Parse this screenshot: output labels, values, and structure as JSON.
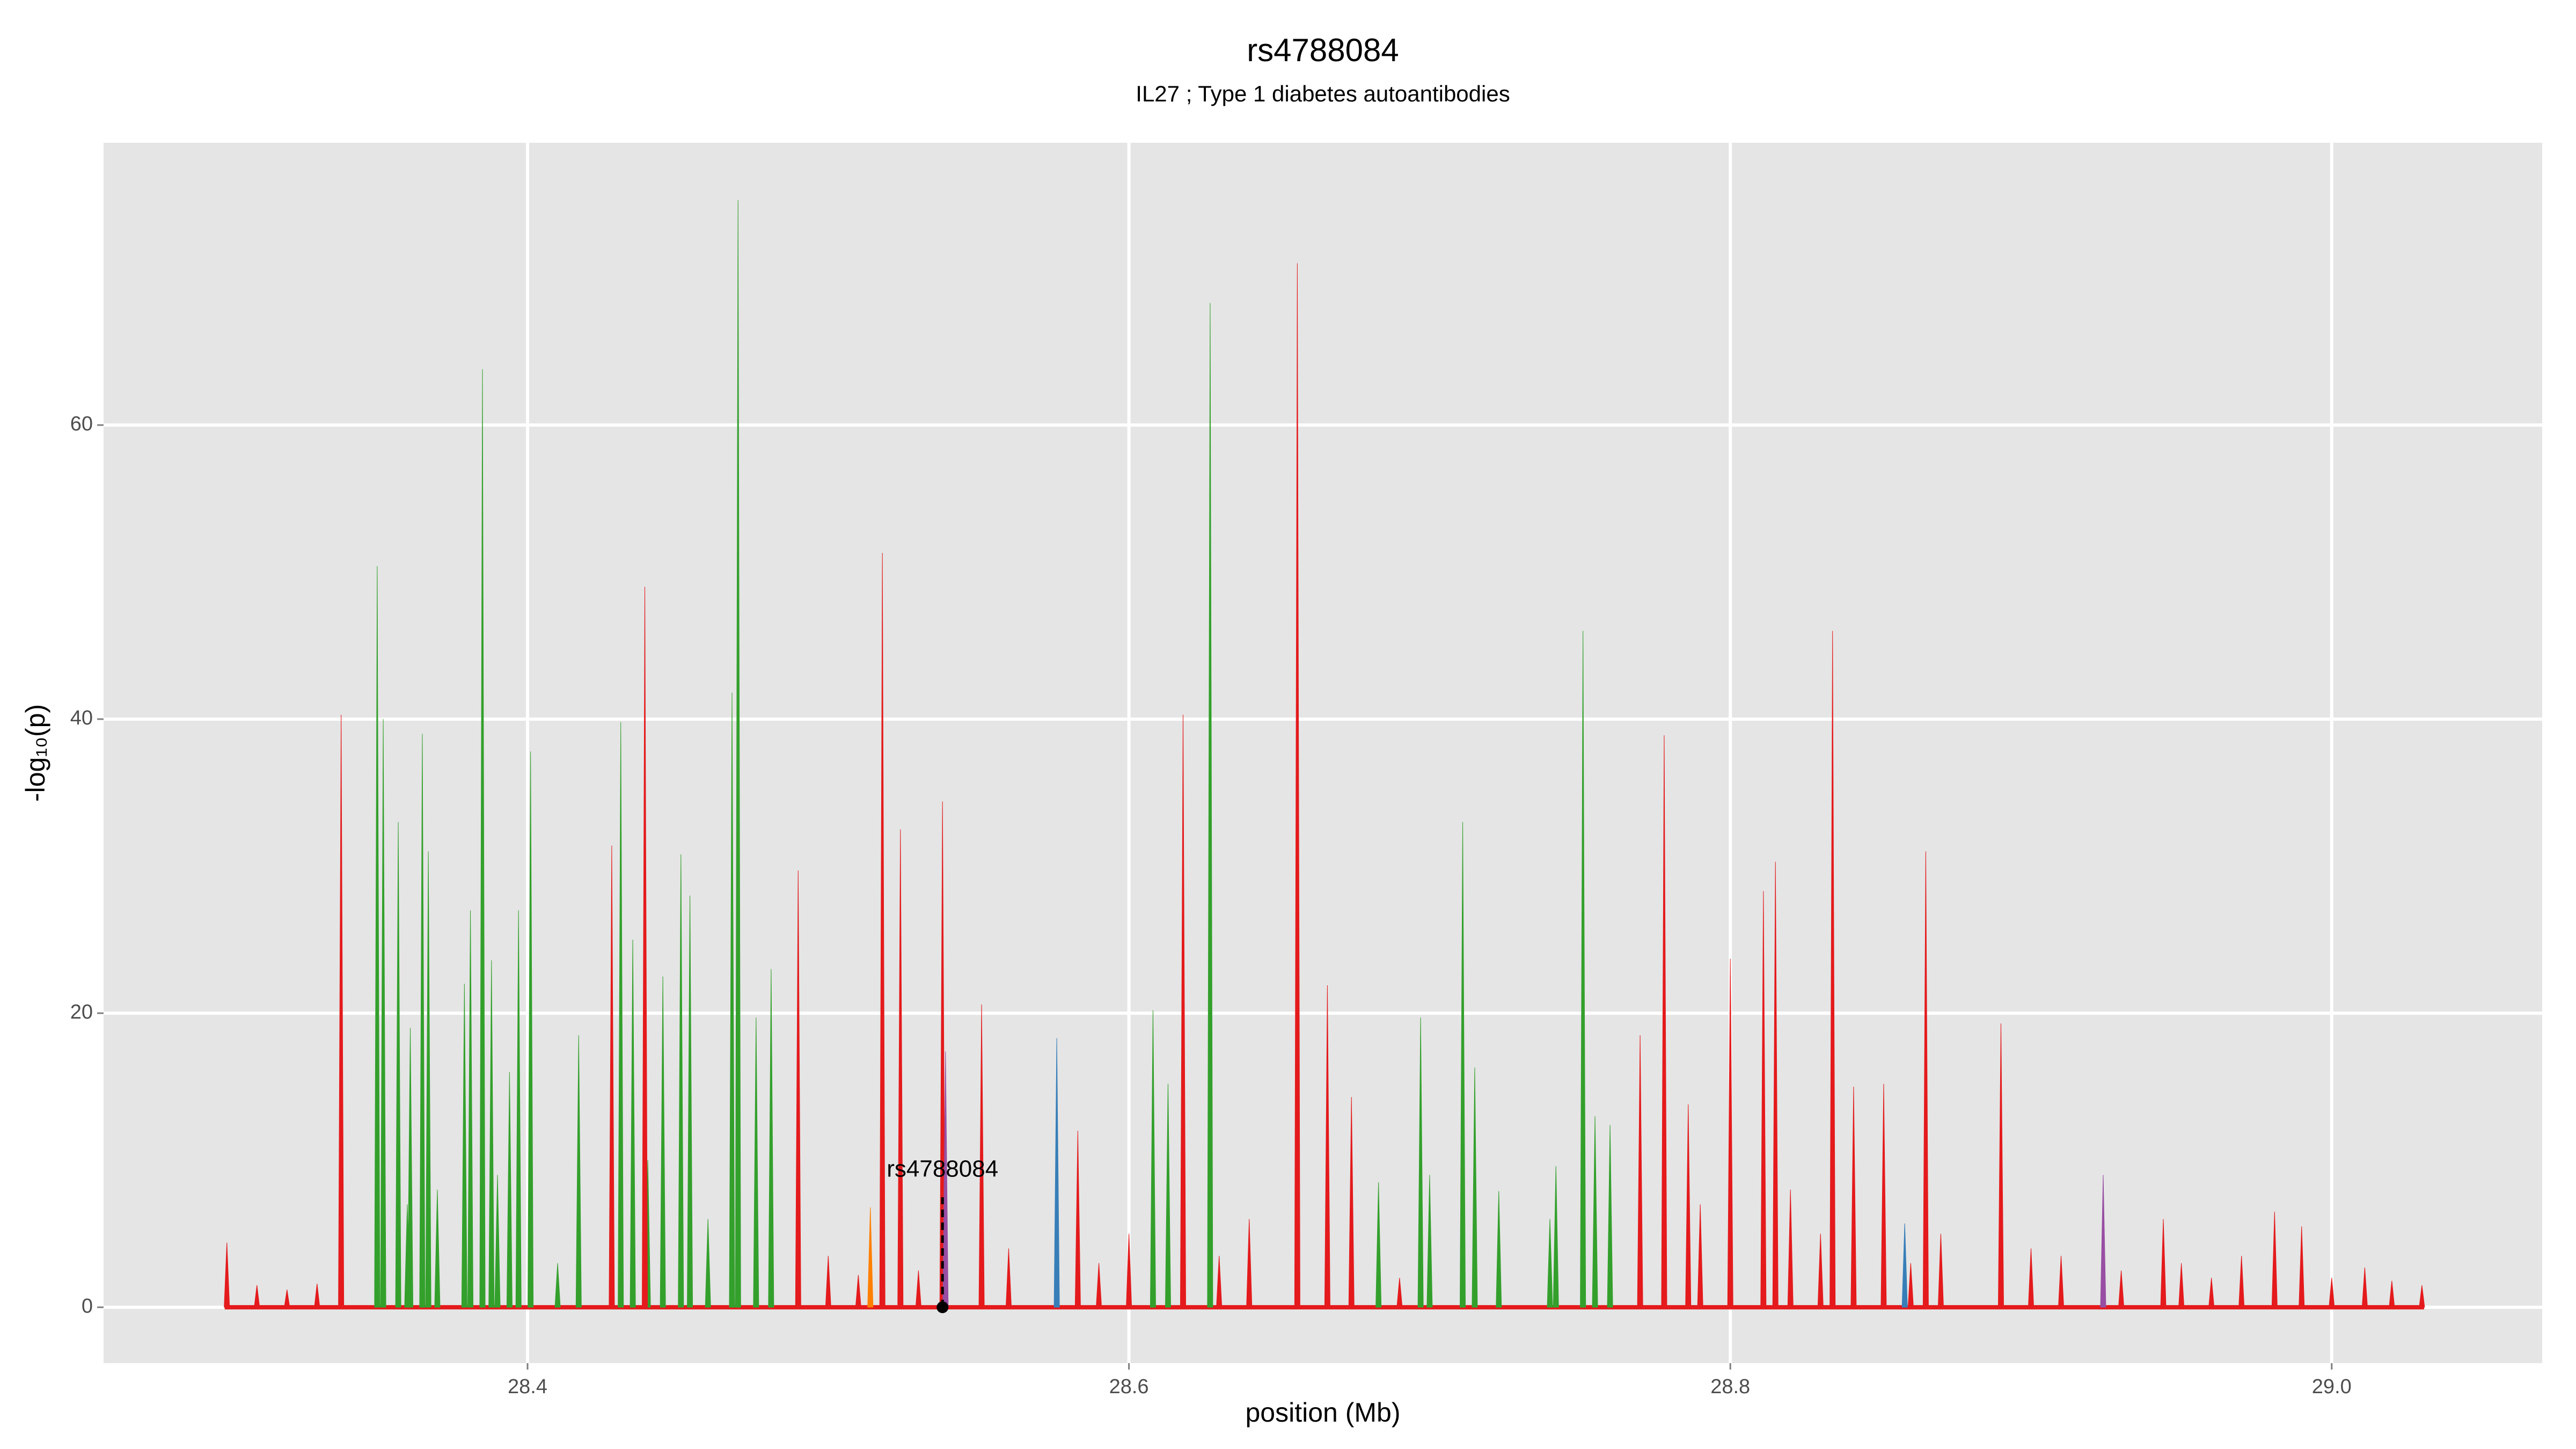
{
  "chart_data": {
    "type": "area",
    "title": "rs4788084",
    "subtitle": "IL27 ; Type 1 diabetes autoantibodies",
    "xlabel": "position (Mb)",
    "ylabel": "-log₁₀(p)",
    "xlim": [
      28.259,
      29.07
    ],
    "ylim": [
      -3.8,
      79.2
    ],
    "xticks": [
      28.4,
      28.6,
      28.8,
      {
        "value": 29,
        "label": "29.0"
      }
    ],
    "yticks": [
      0,
      20,
      40,
      60
    ],
    "grid": true,
    "series": [
      {
        "name": "green",
        "color": "#33a02c",
        "x": [
          28.35,
          28.352,
          28.357,
          28.361,
          28.365,
          28.367,
          28.379,
          28.381,
          28.385,
          28.388,
          28.394,
          28.397,
          28.401,
          28.417,
          28.431,
          28.435,
          28.445,
          28.451,
          28.454,
          28.468,
          28.47,
          28.476,
          28.481,
          28.608,
          28.613,
          28.627,
          28.683,
          28.697,
          28.711,
          28.715,
          28.723,
          28.742,
          28.751,
          28.755,
          28.76,
          28.36,
          28.37,
          28.39,
          28.41,
          28.44,
          28.46,
          28.47,
          28.7,
          28.74,
          28.76
        ],
        "values": [
          50.4,
          40,
          33,
          19,
          39,
          31,
          22,
          27,
          63.8,
          23.6,
          16,
          27,
          37.8,
          18.5,
          39.8,
          25,
          22.5,
          30.8,
          28,
          41.8,
          75.3,
          19.7,
          23,
          20.2,
          15.2,
          68.3,
          8.5,
          19.7,
          33,
          16.3,
          7.9,
          9.6,
          46,
          13,
          12.4,
          7,
          8,
          9,
          3,
          10,
          6,
          12,
          9,
          6,
          5
        ]
      },
      {
        "name": "red",
        "color": "#e41a1c",
        "x": [
          28.3,
          28.338,
          28.428,
          28.439,
          28.49,
          28.518,
          28.524,
          28.538,
          28.551,
          28.583,
          28.618,
          28.656,
          28.666,
          28.674,
          28.77,
          28.778,
          28.786,
          28.8,
          28.811,
          28.815,
          28.834,
          28.841,
          28.851,
          28.865,
          28.89,
          28.944,
          28.981,
          29.011,
          28.31,
          28.32,
          28.33,
          28.5,
          28.51,
          28.53,
          28.56,
          28.59,
          28.6,
          28.63,
          28.64,
          28.69,
          28.79,
          28.82,
          28.83,
          28.86,
          28.87,
          28.9,
          28.91,
          28.93,
          28.95,
          28.96,
          28.97,
          28.99,
          29.0,
          29.02,
          29.03
        ],
        "values": [
          4.4,
          40.3,
          31.4,
          49,
          29.7,
          51.3,
          32.5,
          34.4,
          20.6,
          12,
          40.3,
          71,
          21.9,
          14.3,
          18.5,
          38.9,
          13.8,
          23.7,
          28.3,
          30.3,
          46,
          15,
          15.2,
          31,
          19.3,
          6,
          6.5,
          2.7,
          1.5,
          1.2,
          1.6,
          3.5,
          2.2,
          2.5,
          4,
          3,
          5,
          3.5,
          6,
          2,
          7,
          8,
          5,
          3,
          5,
          4,
          3.5,
          2.5,
          3,
          2,
          3.5,
          5.5,
          2,
          1.8,
          1.5
        ]
      },
      {
        "name": "purple",
        "color": "#984ea3",
        "x": [
          28.539,
          28.924
        ],
        "values": [
          17.4,
          9
        ]
      },
      {
        "name": "blue",
        "color": "#377eb8",
        "x": [
          28.576,
          28.858
        ],
        "values": [
          18.3,
          5.7
        ]
      },
      {
        "name": "orange",
        "color": "#ff7f00",
        "x": [
          28.514
        ],
        "values": [
          6.8
        ]
      }
    ],
    "annotation": {
      "text": "rs4788084",
      "x": 28.538,
      "y": 0
    }
  }
}
